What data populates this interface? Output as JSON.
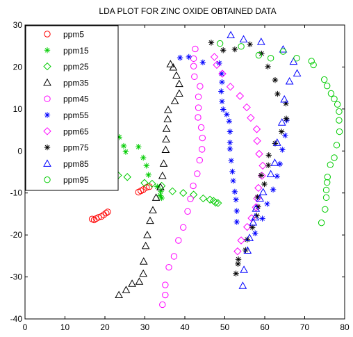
{
  "chart_data": {
    "type": "scatter",
    "title": "LDA PLOT FOR ZINC OXIDE OBTAINED DATA",
    "xlabel": "",
    "ylabel": "",
    "xlim": [
      0,
      80
    ],
    "ylim": [
      -40,
      30
    ],
    "xticks": [
      "0",
      "10",
      "20",
      "30",
      "40",
      "50",
      "60",
      "70",
      "80"
    ],
    "yticks": [
      "30",
      "20",
      "10",
      "0",
      "-10",
      "-20",
      "-30",
      "-40"
    ],
    "grid": false,
    "legend_position": "top-left",
    "series": [
      {
        "name": "ppm5",
        "marker": "circle",
        "color": "#ff0000",
        "points": [
          [
            16.8,
            -16.2
          ],
          [
            17.3,
            -16.4
          ],
          [
            17.8,
            -16.1
          ],
          [
            18.4,
            -15.8
          ],
          [
            19.1,
            -15.6
          ],
          [
            19.7,
            -15.2
          ],
          [
            20.3,
            -14.8
          ],
          [
            20.7,
            -14.5
          ],
          [
            28.4,
            -9.8
          ],
          [
            29.0,
            -9.5
          ],
          [
            29.6,
            -9.2
          ],
          [
            30.4,
            -8.7
          ],
          [
            31.1,
            -8.5
          ]
        ]
      },
      {
        "name": "ppm15",
        "marker": "asterisk",
        "color": "#00cc00",
        "points": [
          [
            22.3,
            11.5
          ],
          [
            22.4,
            8.3
          ],
          [
            22.5,
            5.6
          ],
          [
            23.6,
            3.3
          ],
          [
            24.7,
            1.2
          ],
          [
            25.2,
            -0.2
          ],
          [
            28.4,
            1.0
          ],
          [
            29.6,
            -1.6
          ],
          [
            30.4,
            -3.5
          ],
          [
            30.9,
            -5.7
          ],
          [
            33.1,
            -8.5
          ],
          [
            34.0,
            -9.6
          ],
          [
            33.8,
            -10.6
          ],
          [
            34.2,
            -11.2
          ]
        ]
      },
      {
        "name": "ppm25",
        "marker": "diamond",
        "color": "#00cc00",
        "points": [
          [
            19.9,
            -4.7
          ],
          [
            18.3,
            -5.1
          ],
          [
            23.3,
            -5.8
          ],
          [
            25.6,
            -6.2
          ],
          [
            29.9,
            -7.6
          ],
          [
            31.8,
            -7.8
          ],
          [
            34.2,
            -8.3
          ],
          [
            36.9,
            -9.6
          ],
          [
            39.6,
            -10.0
          ],
          [
            42.2,
            -10.4
          ],
          [
            44.6,
            -11.3
          ],
          [
            46.3,
            -11.6
          ],
          [
            47.2,
            -11.9
          ],
          [
            47.7,
            -12.3
          ],
          [
            48.3,
            -12.4
          ]
        ]
      },
      {
        "name": "ppm35",
        "marker": "triangle",
        "color": "#000000",
        "points": [
          [
            23.5,
            -34.3
          ],
          [
            25.3,
            -33.1
          ],
          [
            26.8,
            -31.6
          ],
          [
            28.6,
            -31.1
          ],
          [
            29.6,
            -29.2
          ],
          [
            29.7,
            -26.3
          ],
          [
            30.2,
            -22.6
          ],
          [
            30.6,
            -20.0
          ],
          [
            31.3,
            -16.6
          ],
          [
            32.0,
            -14.1
          ],
          [
            32.8,
            -11.1
          ],
          [
            33.9,
            -8.6
          ],
          [
            34.4,
            -5.9
          ],
          [
            34.7,
            -3.0
          ],
          [
            35.2,
            0.3
          ],
          [
            35.3,
            2.8
          ],
          [
            35.4,
            5.3
          ],
          [
            35.7,
            7.6
          ],
          [
            35.8,
            9.8
          ],
          [
            37.5,
            11.9
          ],
          [
            38.6,
            13.7
          ],
          [
            38.6,
            16.0
          ],
          [
            37.9,
            18.0
          ],
          [
            37.1,
            19.9
          ],
          [
            36.4,
            20.7
          ]
        ]
      },
      {
        "name": "ppm45",
        "marker": "circle",
        "color": "#ff00ff",
        "points": [
          [
            34.4,
            -36.6
          ],
          [
            35.1,
            -34.3
          ],
          [
            35.1,
            -31.9
          ],
          [
            36.0,
            -27.7
          ],
          [
            37.3,
            -25.1
          ],
          [
            38.4,
            -21.3
          ],
          [
            39.6,
            -18.2
          ],
          [
            40.7,
            -14.4
          ],
          [
            41.4,
            -11.4
          ],
          [
            42.1,
            -8.3
          ],
          [
            43.1,
            -5.4
          ],
          [
            43.7,
            -2.2
          ],
          [
            44.3,
            0.4
          ],
          [
            44.4,
            3.1
          ],
          [
            44.1,
            5.6
          ],
          [
            43.3,
            8.0
          ],
          [
            43.4,
            10.3
          ],
          [
            43.4,
            12.9
          ],
          [
            43.8,
            15.4
          ],
          [
            42.4,
            17.7
          ],
          [
            42.2,
            20.2
          ],
          [
            42.2,
            22.0
          ],
          [
            42.6,
            24.3
          ]
        ]
      },
      {
        "name": "ppm55",
        "marker": "asterisk",
        "color": "#0000ff",
        "points": [
          [
            38.8,
            22.2
          ],
          [
            41.0,
            22.4
          ],
          [
            44.5,
            21.1
          ],
          [
            48.6,
            20.9
          ],
          [
            49.2,
            18.4
          ],
          [
            49.3,
            16.4
          ],
          [
            49.1,
            14.2
          ],
          [
            49.3,
            11.8
          ],
          [
            49.6,
            9.9
          ],
          [
            50.5,
            8.7
          ],
          [
            51.1,
            7.1
          ],
          [
            51.3,
            4.6
          ],
          [
            51.3,
            2.0
          ],
          [
            51.3,
            0.5
          ],
          [
            51.6,
            -2.3
          ],
          [
            51.9,
            -4.9
          ],
          [
            52.1,
            -7.1
          ],
          [
            52.5,
            -9.7
          ],
          [
            52.8,
            -11.6
          ],
          [
            53.0,
            -14.3
          ],
          [
            53.0,
            -16.9
          ],
          [
            57.6,
            -19.6
          ],
          [
            59.4,
            -16.1
          ],
          [
            60.6,
            -12.6
          ],
          [
            62.1,
            -9.2
          ],
          [
            63.1,
            -6.0
          ],
          [
            63.8,
            -3.1
          ],
          [
            64.4,
            0.3
          ],
          [
            65.1,
            3.7
          ],
          [
            65.5,
            7.3
          ]
        ]
      },
      {
        "name": "ppm65",
        "marker": "diamond",
        "color": "#ff00ff",
        "points": [
          [
            47.4,
            22.4
          ],
          [
            48.0,
            20.5
          ],
          [
            49.4,
            18.4
          ],
          [
            51.4,
            15.3
          ],
          [
            53.8,
            13.1
          ],
          [
            55.5,
            10.4
          ],
          [
            56.5,
            7.9
          ],
          [
            58.0,
            5.2
          ],
          [
            58.1,
            2.4
          ],
          [
            58.6,
            -0.7
          ],
          [
            59.5,
            -3.5
          ],
          [
            59.3,
            -5.9
          ],
          [
            58.4,
            -8.8
          ],
          [
            58.1,
            -11.3
          ],
          [
            57.8,
            -13.4
          ],
          [
            56.7,
            -16.0
          ],
          [
            55.6,
            -18.1
          ],
          [
            54.1,
            -21.3
          ],
          [
            53.2,
            -23.9
          ]
        ]
      },
      {
        "name": "ppm75",
        "marker": "asterisk",
        "color": "#000000",
        "points": [
          [
            46.6,
            25.8
          ],
          [
            49.6,
            24.0
          ],
          [
            52.5,
            24.2
          ],
          [
            56.3,
            25.4
          ],
          [
            59.2,
            23.2
          ],
          [
            60.8,
            20.1
          ],
          [
            62.6,
            16.9
          ],
          [
            63.2,
            13.6
          ],
          [
            65.3,
            11.3
          ],
          [
            65.4,
            7.7
          ],
          [
            64.2,
            4.6
          ],
          [
            62.6,
            1.8
          ],
          [
            61.0,
            -1.0
          ],
          [
            60.9,
            -3.4
          ],
          [
            59.1,
            -5.8
          ],
          [
            59.9,
            -7.9
          ],
          [
            58.2,
            -11.0
          ],
          [
            58.3,
            -13.3
          ],
          [
            58.0,
            -15.4
          ],
          [
            56.9,
            -18.2
          ],
          [
            55.6,
            -21.1
          ],
          [
            55.2,
            -23.6
          ],
          [
            53.4,
            -25.8
          ],
          [
            53.3,
            -26.9
          ],
          [
            52.8,
            -29.2
          ]
        ]
      },
      {
        "name": "ppm85",
        "marker": "triangle",
        "color": "#0000ff",
        "points": [
          [
            51.5,
            27.6
          ],
          [
            54.7,
            26.6
          ],
          [
            59.1,
            26.0
          ],
          [
            64.6,
            24.2
          ],
          [
            67.2,
            21.3
          ],
          [
            68.1,
            18.5
          ],
          [
            66.2,
            16.6
          ],
          [
            64.9,
            12.3
          ],
          [
            64.3,
            6.8
          ],
          [
            63.1,
            2.0
          ],
          [
            62.5,
            -2.8
          ],
          [
            61.5,
            -5.5
          ],
          [
            59.6,
            -9.8
          ],
          [
            58.8,
            -11.3
          ],
          [
            57.8,
            -13.7
          ],
          [
            57.6,
            -15.8
          ],
          [
            57.1,
            -17.0
          ],
          [
            56.2,
            -20.7
          ],
          [
            55.7,
            -23.7
          ],
          [
            54.8,
            -28.3
          ],
          [
            54.5,
            -32.1
          ]
        ]
      },
      {
        "name": "ppm95",
        "marker": "circle",
        "color": "#00cc00",
        "points": [
          [
            48.8,
            25.6
          ],
          [
            54.1,
            24.9
          ],
          [
            58.5,
            22.8
          ],
          [
            61.5,
            22.1
          ],
          [
            64.6,
            23.7
          ],
          [
            68.0,
            22.1
          ],
          [
            71.7,
            21.4
          ],
          [
            72.2,
            20.5
          ],
          [
            74.9,
            17.0
          ],
          [
            75.6,
            15.5
          ],
          [
            76.6,
            13.7
          ],
          [
            77.4,
            12.4
          ],
          [
            78.2,
            11.1
          ],
          [
            78.6,
            9.4
          ],
          [
            78.6,
            7.3
          ],
          [
            78.7,
            4.6
          ],
          [
            78.0,
            1.4
          ],
          [
            77.4,
            -1.6
          ],
          [
            76.4,
            -3.3
          ],
          [
            75.7,
            -6.2
          ],
          [
            75.6,
            -7.5
          ],
          [
            75.4,
            -9.3
          ],
          [
            75.4,
            -11.1
          ],
          [
            75.1,
            -13.9
          ],
          [
            74.2,
            -17.1
          ]
        ]
      }
    ]
  }
}
